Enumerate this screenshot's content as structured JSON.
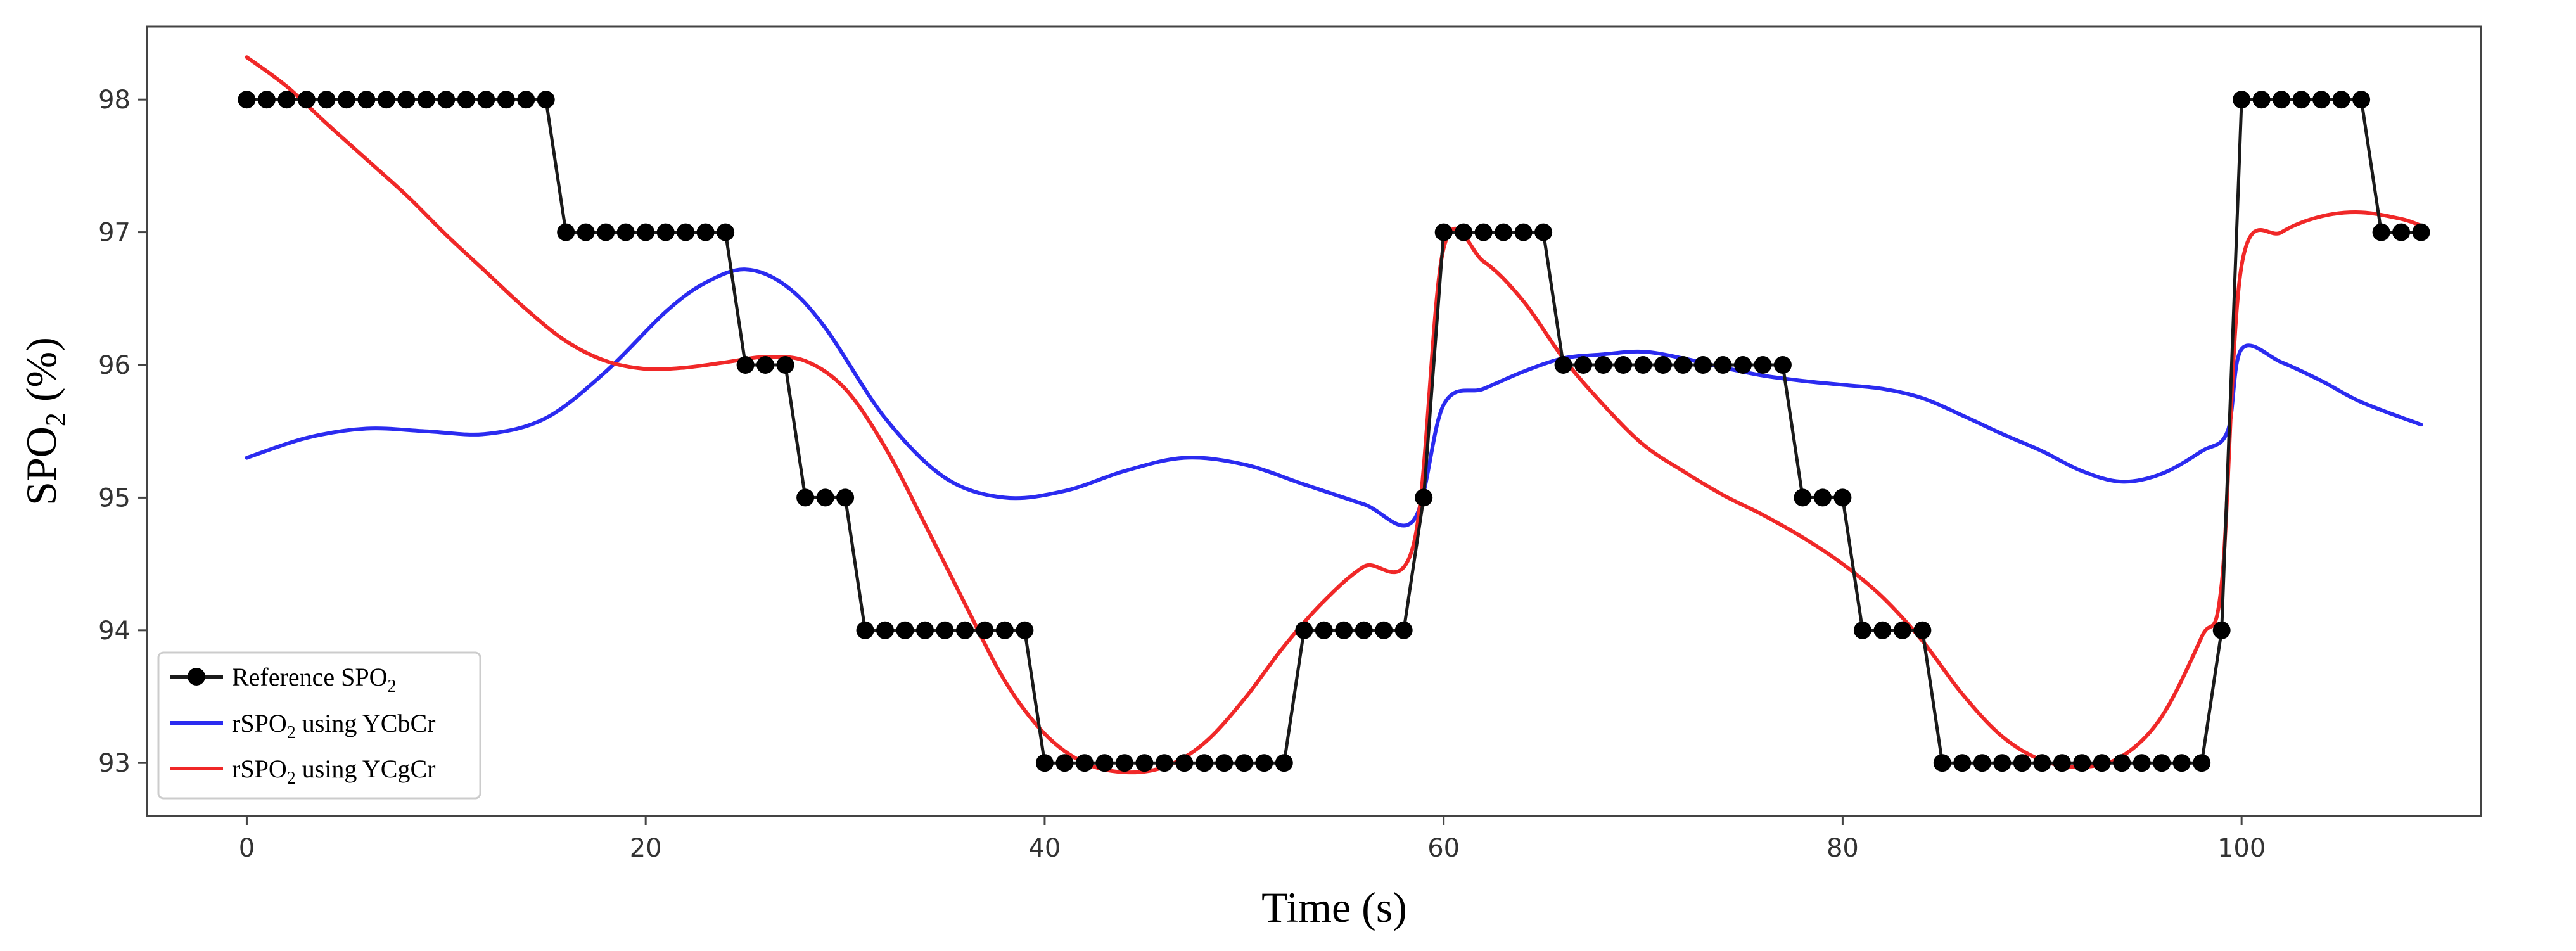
{
  "chart_data": {
    "type": "line",
    "title": "",
    "xlabel": "Time (s)",
    "ylabel": {
      "base": "SPO",
      "sub": "2",
      "tail": " (%)"
    },
    "xlim": [
      -5,
      112
    ],
    "ylim": [
      92.6,
      98.55
    ],
    "xticks": [
      0,
      20,
      40,
      60,
      80,
      100
    ],
    "yticks": [
      93,
      94,
      95,
      96,
      97,
      98
    ],
    "grid": false,
    "legend_position": "bottom-left",
    "series": [
      {
        "name": "Reference SPO2",
        "label": {
          "base": "Reference SPO",
          "sub": "2",
          "tail": ""
        },
        "color": "#1a1a1a",
        "marker": "circle",
        "x": [
          0,
          1,
          2,
          3,
          4,
          5,
          6,
          7,
          8,
          9,
          10,
          11,
          12,
          13,
          14,
          15,
          16,
          17,
          18,
          19,
          20,
          21,
          22,
          23,
          24,
          25,
          26,
          27,
          28,
          29,
          30,
          31,
          32,
          33,
          34,
          35,
          36,
          37,
          38,
          39,
          40,
          41,
          42,
          43,
          44,
          45,
          46,
          47,
          48,
          49,
          50,
          51,
          52,
          53,
          54,
          55,
          56,
          57,
          58,
          59,
          60,
          61,
          62,
          63,
          64,
          65,
          66,
          67,
          68,
          69,
          70,
          71,
          72,
          73,
          74,
          75,
          76,
          77,
          78,
          79,
          80,
          81,
          82,
          83,
          84,
          85,
          86,
          87,
          88,
          89,
          90,
          91,
          92,
          93,
          94,
          95,
          96,
          97,
          98,
          99,
          100,
          101,
          102,
          103,
          104,
          105,
          106,
          107,
          108,
          109
        ],
        "values": [
          98,
          98,
          98,
          98,
          98,
          98,
          98,
          98,
          98,
          98,
          98,
          98,
          98,
          98,
          98,
          98,
          97,
          97,
          97,
          97,
          97,
          97,
          97,
          97,
          97,
          96,
          96,
          96,
          95,
          95,
          95,
          94,
          94,
          94,
          94,
          94,
          94,
          94,
          94,
          94,
          93,
          93,
          93,
          93,
          93,
          93,
          93,
          93,
          93,
          93,
          93,
          93,
          93,
          94,
          94,
          94,
          94,
          94,
          94,
          95,
          97,
          97,
          97,
          97,
          97,
          97,
          96,
          96,
          96,
          96,
          96,
          96,
          96,
          96,
          96,
          96,
          96,
          96,
          95,
          95,
          95,
          94,
          94,
          94,
          94,
          93,
          93,
          93,
          93,
          93,
          93,
          93,
          93,
          93,
          93,
          93,
          93,
          93,
          93,
          94,
          98,
          98,
          98,
          98,
          98,
          98,
          98,
          97,
          97,
          97
        ]
      },
      {
        "name": "rSPO2 using YCbCr",
        "label": {
          "base": "rSPO",
          "sub": "2",
          "tail": " using YCbCr"
        },
        "color": "#2b2bf0",
        "marker": "none",
        "x": [
          0,
          3,
          6,
          9,
          12,
          15,
          18,
          21,
          23,
          25,
          27,
          29,
          32,
          35,
          38,
          41,
          44,
          47,
          50,
          53,
          56,
          58.5,
          60,
          62,
          64,
          66,
          68,
          70,
          72,
          74,
          76,
          78,
          80,
          82,
          84,
          86,
          88,
          90,
          92,
          94,
          96,
          98,
          99.3,
          100,
          102,
          104,
          106,
          109
        ],
        "values": [
          95.3,
          95.45,
          95.52,
          95.5,
          95.48,
          95.6,
          95.95,
          96.4,
          96.62,
          96.72,
          96.6,
          96.28,
          95.6,
          95.15,
          95.0,
          95.05,
          95.2,
          95.3,
          95.25,
          95.1,
          94.95,
          94.83,
          95.7,
          95.82,
          95.95,
          96.05,
          96.08,
          96.1,
          96.05,
          95.98,
          95.92,
          95.88,
          95.85,
          95.82,
          95.75,
          95.62,
          95.48,
          95.35,
          95.2,
          95.12,
          95.18,
          95.35,
          95.5,
          96.12,
          96.02,
          95.88,
          95.72,
          95.55
        ]
      },
      {
        "name": "rSPO2 using YCgCr",
        "label": {
          "base": "rSPO",
          "sub": "2",
          "tail": " using YCgCr"
        },
        "color": "#f02828",
        "marker": "none",
        "x": [
          0,
          2,
          4,
          6,
          8,
          10,
          12,
          14,
          16,
          18,
          20,
          22,
          24,
          26,
          28,
          30,
          32,
          34,
          36,
          38,
          40,
          42,
          44,
          46,
          48,
          50,
          52,
          54,
          56,
          58.5,
          60,
          62,
          64,
          66,
          68,
          70,
          72,
          74,
          76,
          78,
          80,
          82,
          84,
          86,
          88,
          90,
          92,
          94,
          96,
          98,
          99,
          100,
          102,
          104,
          106,
          108,
          109
        ],
        "values": [
          98.32,
          98.1,
          97.82,
          97.55,
          97.28,
          96.98,
          96.7,
          96.42,
          96.18,
          96.03,
          95.97,
          95.98,
          96.02,
          96.06,
          96.03,
          95.82,
          95.38,
          94.8,
          94.2,
          93.62,
          93.22,
          93.0,
          92.93,
          92.97,
          93.15,
          93.48,
          93.88,
          94.22,
          94.48,
          94.65,
          96.88,
          96.78,
          96.48,
          96.05,
          95.7,
          95.4,
          95.2,
          95.02,
          94.87,
          94.7,
          94.5,
          94.25,
          93.92,
          93.52,
          93.2,
          93.02,
          92.97,
          93.05,
          93.35,
          93.95,
          94.35,
          96.75,
          97.0,
          97.12,
          97.15,
          97.1,
          97.05
        ]
      }
    ]
  }
}
